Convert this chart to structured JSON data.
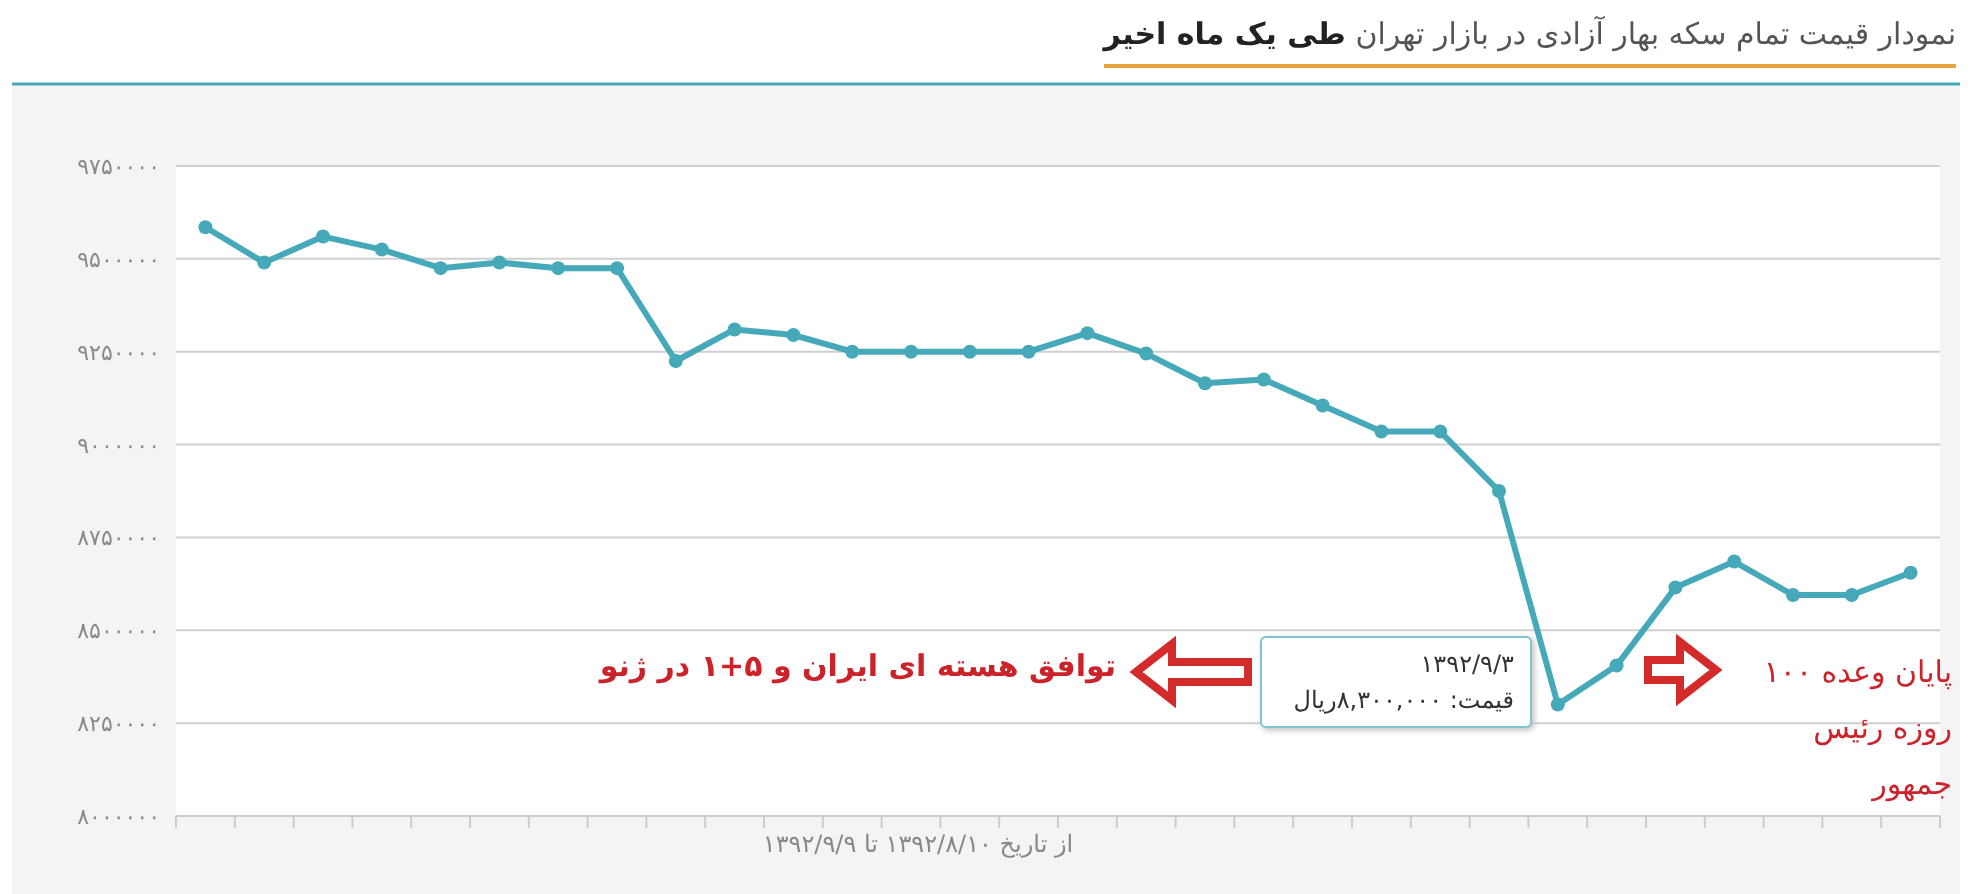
{
  "chart_data": {
    "type": "line",
    "title": "نمودار قیمت تمام سکه بهار آزادی در بازار تهران",
    "subtitle": "طی یک ماه اخیر",
    "xlabel": "از تاریخ ۱۳۹۲/۸/۱۰ تا ۱۳۹۲/۹/۹",
    "categories": [
      null,
      null,
      null,
      null,
      null,
      null,
      null,
      null,
      null,
      null,
      null,
      null,
      null,
      null,
      null,
      null,
      null,
      null,
      null,
      null,
      null,
      null,
      null,
      null,
      null,
      null,
      null,
      null,
      null,
      null
    ],
    "series": [
      {
        "color": "#46a9b9",
        "values": [
          9585000,
          9490000,
          9560000,
          9525000,
          9475000,
          9490000,
          9475000,
          9475000,
          9225000,
          9310000,
          9295000,
          9250000,
          9250000,
          9250000,
          9250000,
          9300000,
          9245000,
          9165000,
          9175000,
          9105000,
          9035000,
          9035000,
          8875000,
          8300000,
          8405000,
          8615000,
          8685000,
          8595000,
          8595000,
          8655000
        ]
      }
    ],
    "ylim": [
      8000000,
      9750000
    ],
    "yticks": [
      {
        "value": 8000000,
        "label": "۸۰۰۰۰۰۰"
      },
      {
        "value": 8250000,
        "label": "۸۲۵۰۰۰۰"
      },
      {
        "value": 8500000,
        "label": "۸۵۰۰۰۰۰"
      },
      {
        "value": 8750000,
        "label": "۸۷۵۰۰۰۰"
      },
      {
        "value": 9000000,
        "label": "۹۰۰۰۰۰۰"
      },
      {
        "value": 9250000,
        "label": "۹۲۵۰۰۰۰"
      },
      {
        "value": 9500000,
        "label": "۹۵۰۰۰۰۰"
      },
      {
        "value": 9750000,
        "label": "۹۷۵۰۰۰۰"
      }
    ],
    "grid": "y",
    "marker": "circle",
    "tick_labels": "y",
    "annotations": [
      "توافق هسته ای ایران و ۵+۱ در ژنو",
      "پایان وعده ۱۰۰ روزه رئیس جمهور",
      "۱۳۹۲/۹/۳",
      "قیمت: ۸,۳۰۰,۰۰۰ریال"
    ]
  }
}
